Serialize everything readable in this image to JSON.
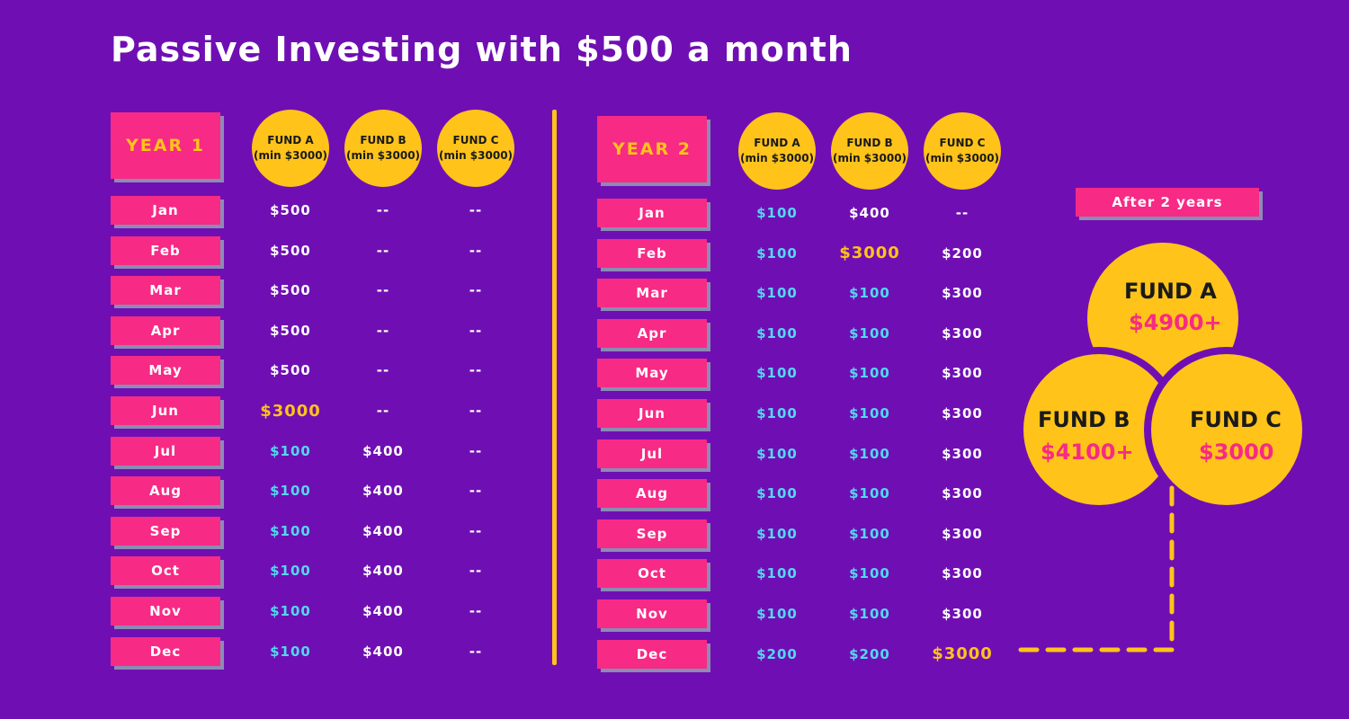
{
  "title": "Passive Investing with $500 a month",
  "colors": {
    "background": "#6f0fb3",
    "pink": "#f72a85",
    "gold": "#ffc31a",
    "cyan": "#52d8f0",
    "white": "#ffffff"
  },
  "year1": {
    "label": "YEAR 1",
    "funds": [
      {
        "name": "FUND A",
        "min": "(min $3000)"
      },
      {
        "name": "FUND B",
        "min": "(min $3000)"
      },
      {
        "name": "FUND C",
        "min": "(min $3000)"
      }
    ],
    "rows": [
      {
        "month": "Jan",
        "values": [
          "$500",
          "--",
          "--"
        ],
        "styles": [
          "white",
          "dash",
          "dash"
        ]
      },
      {
        "month": "Feb",
        "values": [
          "$500",
          "--",
          "--"
        ],
        "styles": [
          "white",
          "dash",
          "dash"
        ]
      },
      {
        "month": "Mar",
        "values": [
          "$500",
          "--",
          "--"
        ],
        "styles": [
          "white",
          "dash",
          "dash"
        ]
      },
      {
        "month": "Apr",
        "values": [
          "$500",
          "--",
          "--"
        ],
        "styles": [
          "white",
          "dash",
          "dash"
        ]
      },
      {
        "month": "May",
        "values": [
          "$500",
          "--",
          "--"
        ],
        "styles": [
          "white",
          "dash",
          "dash"
        ]
      },
      {
        "month": "Jun",
        "values": [
          "$3000",
          "--",
          "--"
        ],
        "styles": [
          "gold",
          "dash",
          "dash"
        ]
      },
      {
        "month": "Jul",
        "values": [
          "$100",
          "$400",
          "--"
        ],
        "styles": [
          "cyan",
          "white",
          "dash"
        ]
      },
      {
        "month": "Aug",
        "values": [
          "$100",
          "$400",
          "--"
        ],
        "styles": [
          "cyan",
          "white",
          "dash"
        ]
      },
      {
        "month": "Sep",
        "values": [
          "$100",
          "$400",
          "--"
        ],
        "styles": [
          "cyan",
          "white",
          "dash"
        ]
      },
      {
        "month": "Oct",
        "values": [
          "$100",
          "$400",
          "--"
        ],
        "styles": [
          "cyan",
          "white",
          "dash"
        ]
      },
      {
        "month": "Nov",
        "values": [
          "$100",
          "$400",
          "--"
        ],
        "styles": [
          "cyan",
          "white",
          "dash"
        ]
      },
      {
        "month": "Dec",
        "values": [
          "$100",
          "$400",
          "--"
        ],
        "styles": [
          "cyan",
          "white",
          "dash"
        ]
      }
    ]
  },
  "year2": {
    "label": "YEAR 2",
    "funds": [
      {
        "name": "FUND A",
        "min": "(min $3000)"
      },
      {
        "name": "FUND B",
        "min": "(min $3000)"
      },
      {
        "name": "FUND C",
        "min": "(min $3000)"
      }
    ],
    "rows": [
      {
        "month": "Jan",
        "values": [
          "$100",
          "$400",
          "--"
        ],
        "styles": [
          "cyan",
          "white",
          "dash"
        ]
      },
      {
        "month": "Feb",
        "values": [
          "$100",
          "$3000",
          "$200"
        ],
        "styles": [
          "cyan",
          "gold",
          "white"
        ]
      },
      {
        "month": "Mar",
        "values": [
          "$100",
          "$100",
          "$300"
        ],
        "styles": [
          "cyan",
          "cyan",
          "white"
        ]
      },
      {
        "month": "Apr",
        "values": [
          "$100",
          "$100",
          "$300"
        ],
        "styles": [
          "cyan",
          "cyan",
          "white"
        ]
      },
      {
        "month": "May",
        "values": [
          "$100",
          "$100",
          "$300"
        ],
        "styles": [
          "cyan",
          "cyan",
          "white"
        ]
      },
      {
        "month": "Jun",
        "values": [
          "$100",
          "$100",
          "$300"
        ],
        "styles": [
          "cyan",
          "cyan",
          "white"
        ]
      },
      {
        "month": "Jul",
        "values": [
          "$100",
          "$100",
          "$300"
        ],
        "styles": [
          "cyan",
          "cyan",
          "white"
        ]
      },
      {
        "month": "Aug",
        "values": [
          "$100",
          "$100",
          "$300"
        ],
        "styles": [
          "cyan",
          "cyan",
          "white"
        ]
      },
      {
        "month": "Sep",
        "values": [
          "$100",
          "$100",
          "$300"
        ],
        "styles": [
          "cyan",
          "cyan",
          "white"
        ]
      },
      {
        "month": "Oct",
        "values": [
          "$100",
          "$100",
          "$300"
        ],
        "styles": [
          "cyan",
          "cyan",
          "white"
        ]
      },
      {
        "month": "Nov",
        "values": [
          "$100",
          "$100",
          "$300"
        ],
        "styles": [
          "cyan",
          "cyan",
          "white"
        ]
      },
      {
        "month": "Dec",
        "values": [
          "$200",
          "$200",
          "$3000"
        ],
        "styles": [
          "cyan",
          "cyan",
          "gold"
        ]
      }
    ]
  },
  "summary": {
    "label": "After 2 years",
    "funds": [
      {
        "name": "FUND A",
        "value": "$4900+"
      },
      {
        "name": "FUND B",
        "value": "$4100+"
      },
      {
        "name": "FUND C",
        "value": "$3000"
      }
    ]
  }
}
